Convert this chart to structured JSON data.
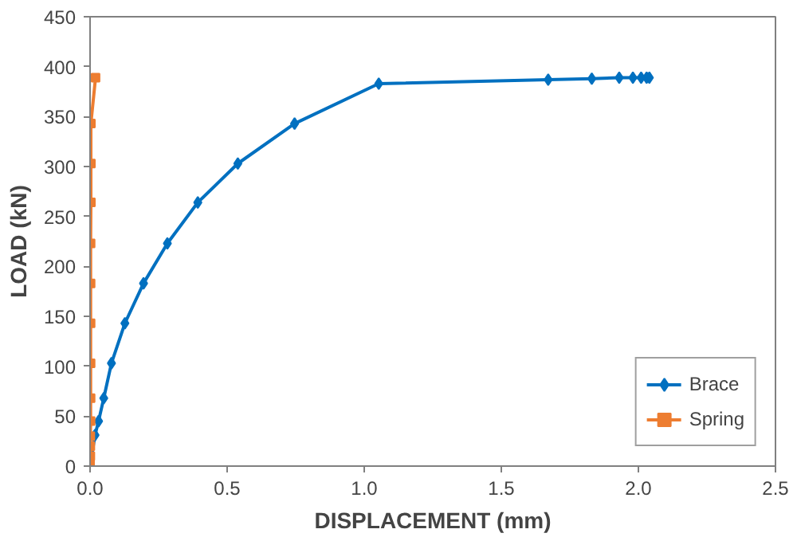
{
  "chart_data": {
    "type": "line",
    "xlabel": "DISPLACEMENT (mm)",
    "ylabel": "LOAD (kN)",
    "xlim": [
      0,
      2.5
    ],
    "xticks": [
      {
        "value": 0,
        "label": "0.0"
      },
      {
        "value": 0.5,
        "label": "0.5"
      },
      {
        "value": 1,
        "label": "1.0"
      },
      {
        "value": 1.5,
        "label": "1.5"
      },
      {
        "value": 2,
        "label": "2.0"
      },
      {
        "value": 2.5,
        "label": "2.5"
      }
    ],
    "ylim": [
      0,
      450
    ],
    "yticks": [
      0,
      50,
      100,
      150,
      200,
      250,
      300,
      350,
      400,
      450
    ],
    "grid": false,
    "legend": "bottom right",
    "series": [
      {
        "name": "Brace",
        "color": "#0070c0",
        "marker": "diamond",
        "x": [
          0,
          0.018,
          0.031,
          0.05,
          0.078,
          0.127,
          0.195,
          0.282,
          0.393,
          0.539,
          0.746,
          1.053,
          1.671,
          1.83,
          1.93,
          1.98,
          2.01,
          2.03,
          2.04
        ],
        "values": [
          0,
          31,
          45,
          68,
          103,
          143,
          183,
          223,
          264,
          303,
          343,
          383,
          387,
          388,
          389,
          389,
          389,
          389,
          389
        ]
      },
      {
        "name": "Spring",
        "color": "#ed7d31",
        "marker": "square",
        "x": [
          0,
          0,
          0.001,
          0.001,
          0.001,
          0.002,
          0.002,
          0.002,
          0.002,
          0.002,
          0.002,
          0.003,
          0.003,
          0.003,
          0.02
        ],
        "values": [
          0,
          5,
          10,
          20,
          30,
          45,
          68,
          103,
          143,
          183,
          223,
          264,
          303,
          343,
          389
        ]
      }
    ]
  }
}
